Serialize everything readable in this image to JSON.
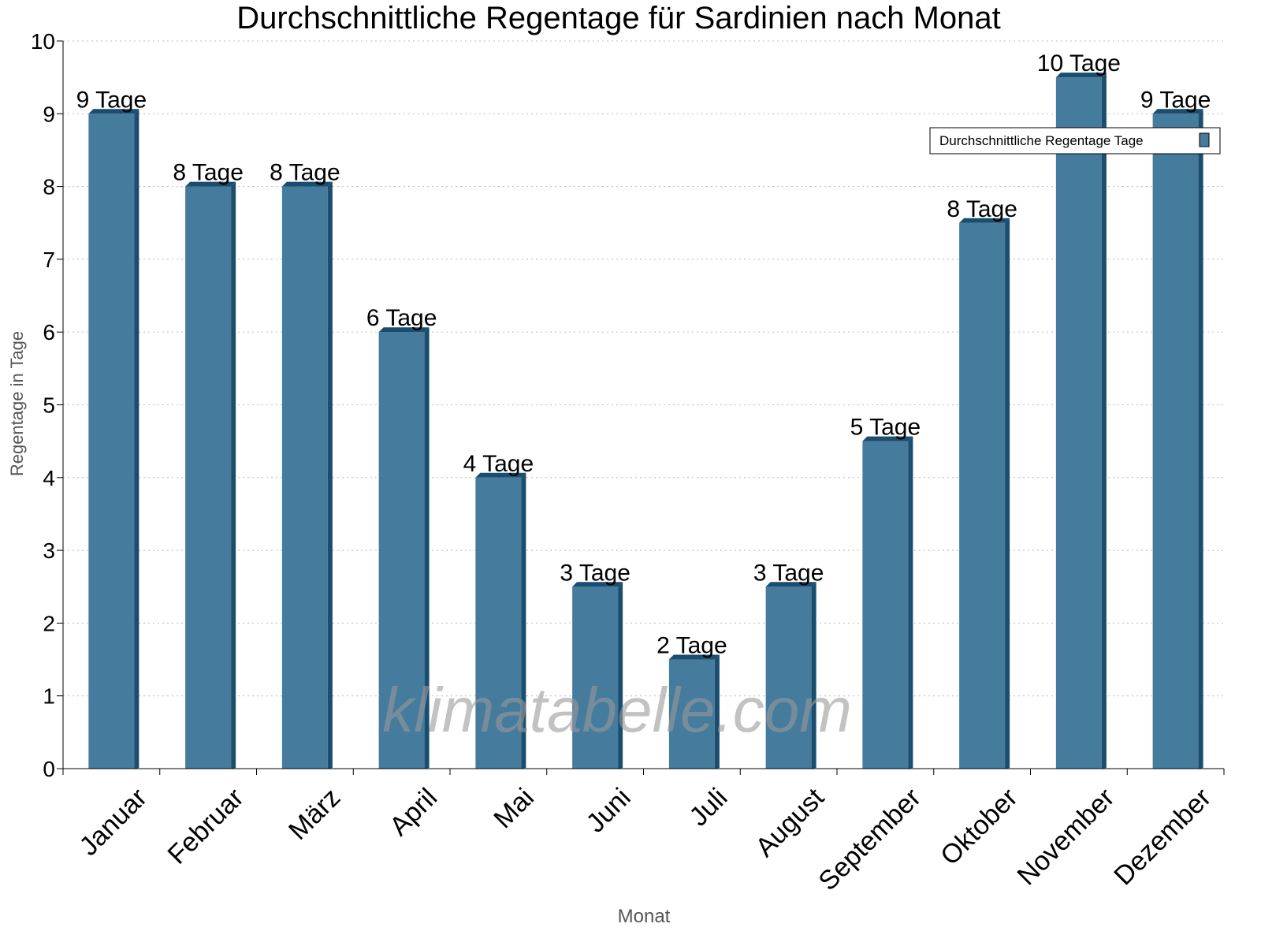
{
  "chart_data": {
    "type": "bar",
    "title": "Durchschnittliche Regentage für Sardinien nach Monat",
    "xlabel": "Monat",
    "ylabel": "Regentage in Tage",
    "ylim": [
      0,
      10
    ],
    "yticks": [
      0,
      1,
      2,
      3,
      4,
      5,
      6,
      7,
      8,
      9,
      10
    ],
    "grid": true,
    "legend_position": "top-right",
    "categories": [
      "Januar",
      "Februar",
      "März",
      "April",
      "Mai",
      "Juni",
      "Juli",
      "August",
      "September",
      "Oktober",
      "November",
      "Dezember"
    ],
    "series": [
      {
        "name": "Durchschnittliche Regentage Tage",
        "values": [
          9,
          8,
          8,
          6,
          4,
          2.5,
          1.5,
          2.5,
          4.5,
          7.5,
          9.5,
          9
        ],
        "data_labels": [
          "9 Tage",
          "8 Tage",
          "8 Tage",
          "6 Tage",
          "4 Tage",
          "3 Tage",
          "2 Tage",
          "3 Tage",
          "5 Tage",
          "8 Tage",
          "10 Tage",
          "9 Tage"
        ],
        "color": "#457b9d",
        "shade_color": "#1a4d6e"
      }
    ],
    "watermark": "klimatabelle.com"
  }
}
